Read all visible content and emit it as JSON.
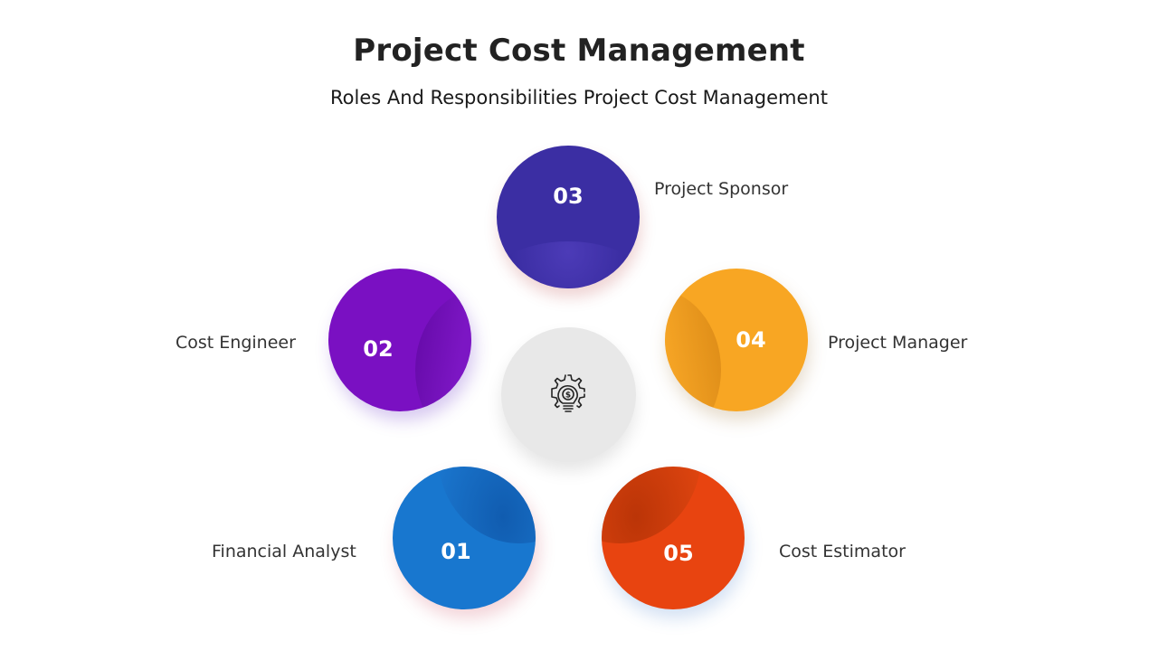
{
  "title": "Project Cost Management",
  "subtitle": "Roles And Responsibilities Project Cost Management",
  "center": {
    "icon": "lightbulb-dollar-gear-icon"
  },
  "steps": [
    {
      "number": "01",
      "label": "Financial Analyst",
      "color": "#1877cf"
    },
    {
      "number": "02",
      "label": "Cost Engineer",
      "color": "#7a10c2"
    },
    {
      "number": "03",
      "label": "Project Sponsor",
      "color": "#3b2ea3"
    },
    {
      "number": "04",
      "label": "Project Manager",
      "color": "#f8a623"
    },
    {
      "number": "05",
      "label": "Cost Estimator",
      "color": "#e84410"
    }
  ]
}
